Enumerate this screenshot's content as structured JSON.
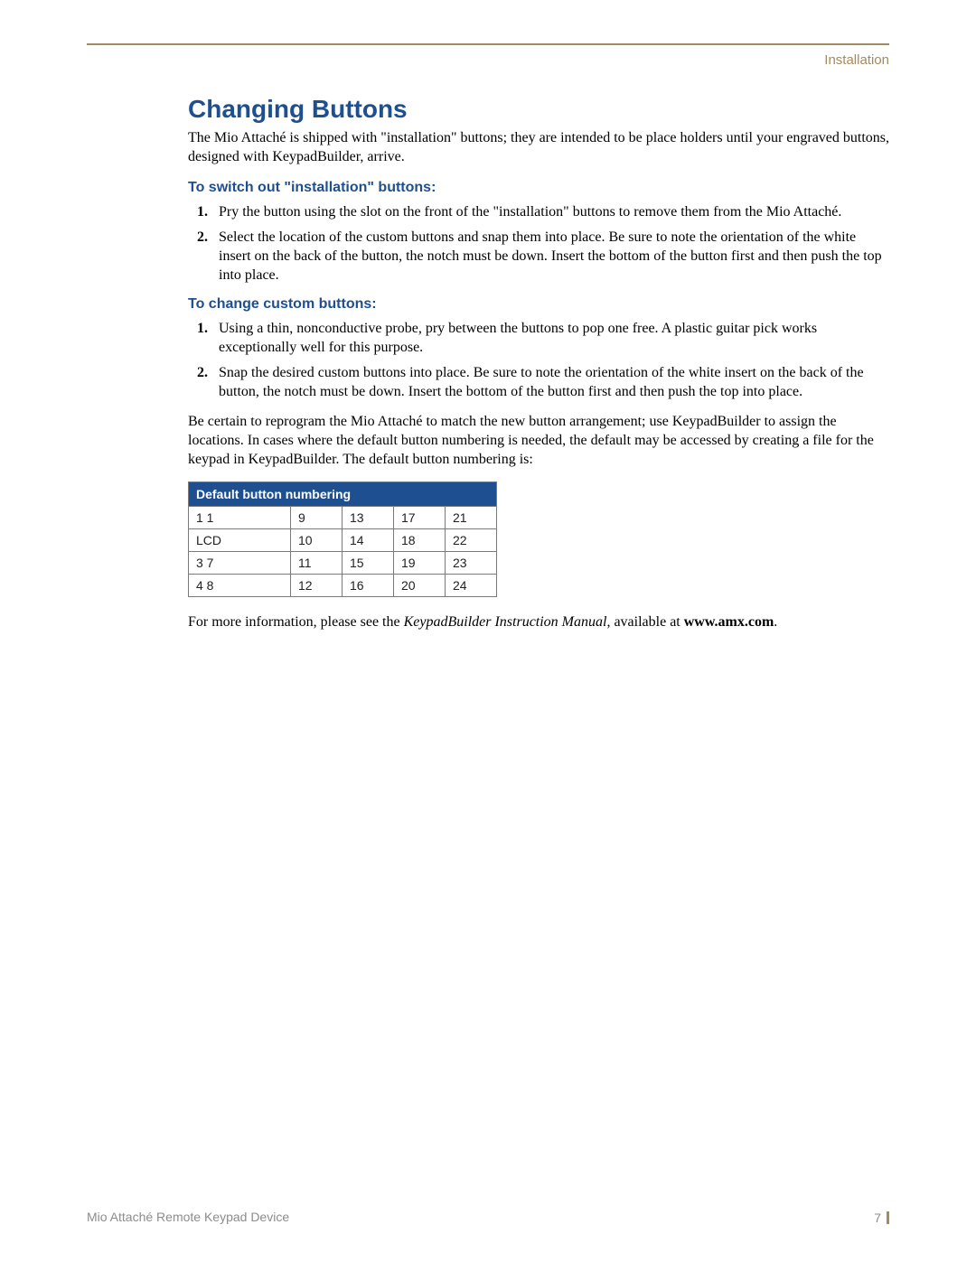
{
  "header": {
    "section_label": "Installation"
  },
  "title": "Changing Buttons",
  "intro": "The Mio Attaché is shipped with \"installation\" buttons; they are intended to be place holders until your engraved buttons, designed with KeypadBuilder, arrive.",
  "section1": {
    "heading": "To switch out \"installation\" buttons:",
    "steps": [
      "Pry the button using the slot on the front of the \"installation\" buttons to remove them from the Mio Attaché.",
      "Select the location of the custom buttons and snap them into place. Be sure to note the orientation of the white insert on the back of the button, the notch must be down. Insert the bottom of the button first and then push the top into place."
    ]
  },
  "section2": {
    "heading": "To change custom buttons:",
    "steps": [
      "Using a thin, nonconductive probe, pry between the buttons to pop one free. A plastic guitar pick works exceptionally well for this purpose.",
      "Snap the desired custom buttons into place. Be sure to note the orientation of the white insert on the back of the button, the notch must be down. Insert the bottom of the button first and then push the top into place."
    ]
  },
  "note": "Be certain to reprogram the Mio Attaché to match the new button arrangement; use KeypadBuilder to assign the locations.  In cases where the default button numbering is needed, the default may be accessed by creating a file for the keypad in KeypadBuilder.  The default button numbering is:",
  "table": {
    "title": "Default button numbering",
    "header_bg": "#1d4f91",
    "header_fg": "#ffffff",
    "border_color": "#7a7a7a",
    "rows": [
      [
        "1 1",
        "9",
        "13",
        "17",
        "21"
      ],
      [
        "LCD",
        "10",
        "14",
        "18",
        "22"
      ],
      [
        "3 7",
        "11",
        "15",
        "19",
        "23"
      ],
      [
        "4 8",
        "12",
        "16",
        "20",
        "24"
      ]
    ]
  },
  "closing": {
    "prefix": "For more information, please see the ",
    "italic": "KeypadBuilder Instruction Manual",
    "mid": ", available at ",
    "bold": "www.amx.com",
    "suffix": "."
  },
  "footer": {
    "left": "Mio Attaché Remote Keypad Device",
    "page_number": "7"
  },
  "colors": {
    "accent_blue": "#1d4f91",
    "rule_tan": "#a38b5f",
    "muted_gray": "#8c8c8c"
  }
}
